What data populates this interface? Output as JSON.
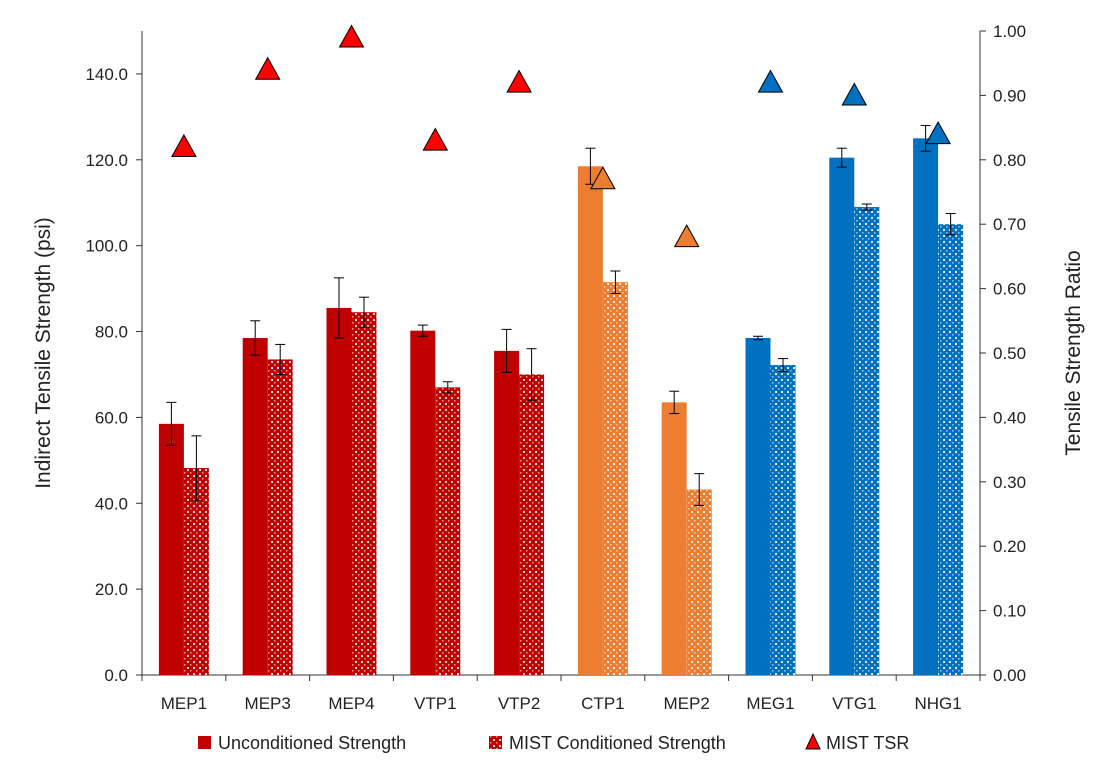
{
  "chart_data": {
    "type": "bar",
    "title": "",
    "categories": [
      "MEP1",
      "MEP3",
      "MEP4",
      "VTP1",
      "VTP2",
      "CTP1",
      "MEP2",
      "MEG1",
      "VTG1",
      "NHG1"
    ],
    "category_colors": [
      "#c00000",
      "#c00000",
      "#c00000",
      "#c00000",
      "#c00000",
      "#ed7d31",
      "#ed7d31",
      "#0070c0",
      "#0070c0",
      "#0070c0"
    ],
    "series": [
      {
        "name": "Unconditioned Strength",
        "axis": "left",
        "style": "solid",
        "values": [
          58.5,
          78.5,
          85.5,
          80.2,
          75.5,
          118.5,
          63.5,
          78.5,
          120.5,
          125.0
        ],
        "errors": [
          5.0,
          4.0,
          7.0,
          1.3,
          5.0,
          4.2,
          2.6,
          0.4,
          2.2,
          3.0
        ]
      },
      {
        "name": "MIST Conditioned Strength",
        "axis": "left",
        "style": "patterned",
        "values": [
          48.2,
          73.5,
          84.5,
          67.0,
          70.0,
          91.5,
          43.2,
          72.2,
          109.0,
          105.0
        ],
        "errors": [
          7.5,
          3.5,
          3.5,
          1.3,
          6.0,
          2.6,
          3.7,
          1.5,
          0.7,
          2.5
        ]
      },
      {
        "name": "MIST TSR",
        "axis": "right",
        "style": "triangle",
        "values": [
          0.82,
          0.94,
          0.99,
          0.83,
          0.92,
          0.77,
          0.68,
          0.92,
          0.9,
          0.84
        ]
      }
    ],
    "left_axis": {
      "label": "Indirect Tensile Strength (psi)",
      "ylim": [
        0,
        150
      ],
      "ticks": [
        "0.0",
        "20.0",
        "40.0",
        "60.0",
        "80.0",
        "100.0",
        "120.0",
        "140.0"
      ],
      "tick_values": [
        0,
        20,
        40,
        60,
        80,
        100,
        120,
        140
      ]
    },
    "right_axis": {
      "label": "Tensile Strength Ratio",
      "ylim": [
        0,
        1
      ],
      "ticks": [
        "0.00",
        "0.10",
        "0.20",
        "0.30",
        "0.40",
        "0.50",
        "0.60",
        "0.70",
        "0.80",
        "0.90",
        "1.00"
      ],
      "tick_values": [
        0,
        0.1,
        0.2,
        0.3,
        0.4,
        0.5,
        0.6,
        0.7,
        0.8,
        0.9,
        1.0
      ]
    },
    "grid": false,
    "legend_position": "bottom"
  },
  "legend": {
    "items": [
      {
        "label": "Unconditioned Strength",
        "style": "solid",
        "color": "#c00000"
      },
      {
        "label": "MIST Conditioned Strength",
        "style": "patterned",
        "color": "#c00000"
      },
      {
        "label": "MIST TSR",
        "style": "triangle",
        "color": "#ff0000"
      }
    ]
  }
}
